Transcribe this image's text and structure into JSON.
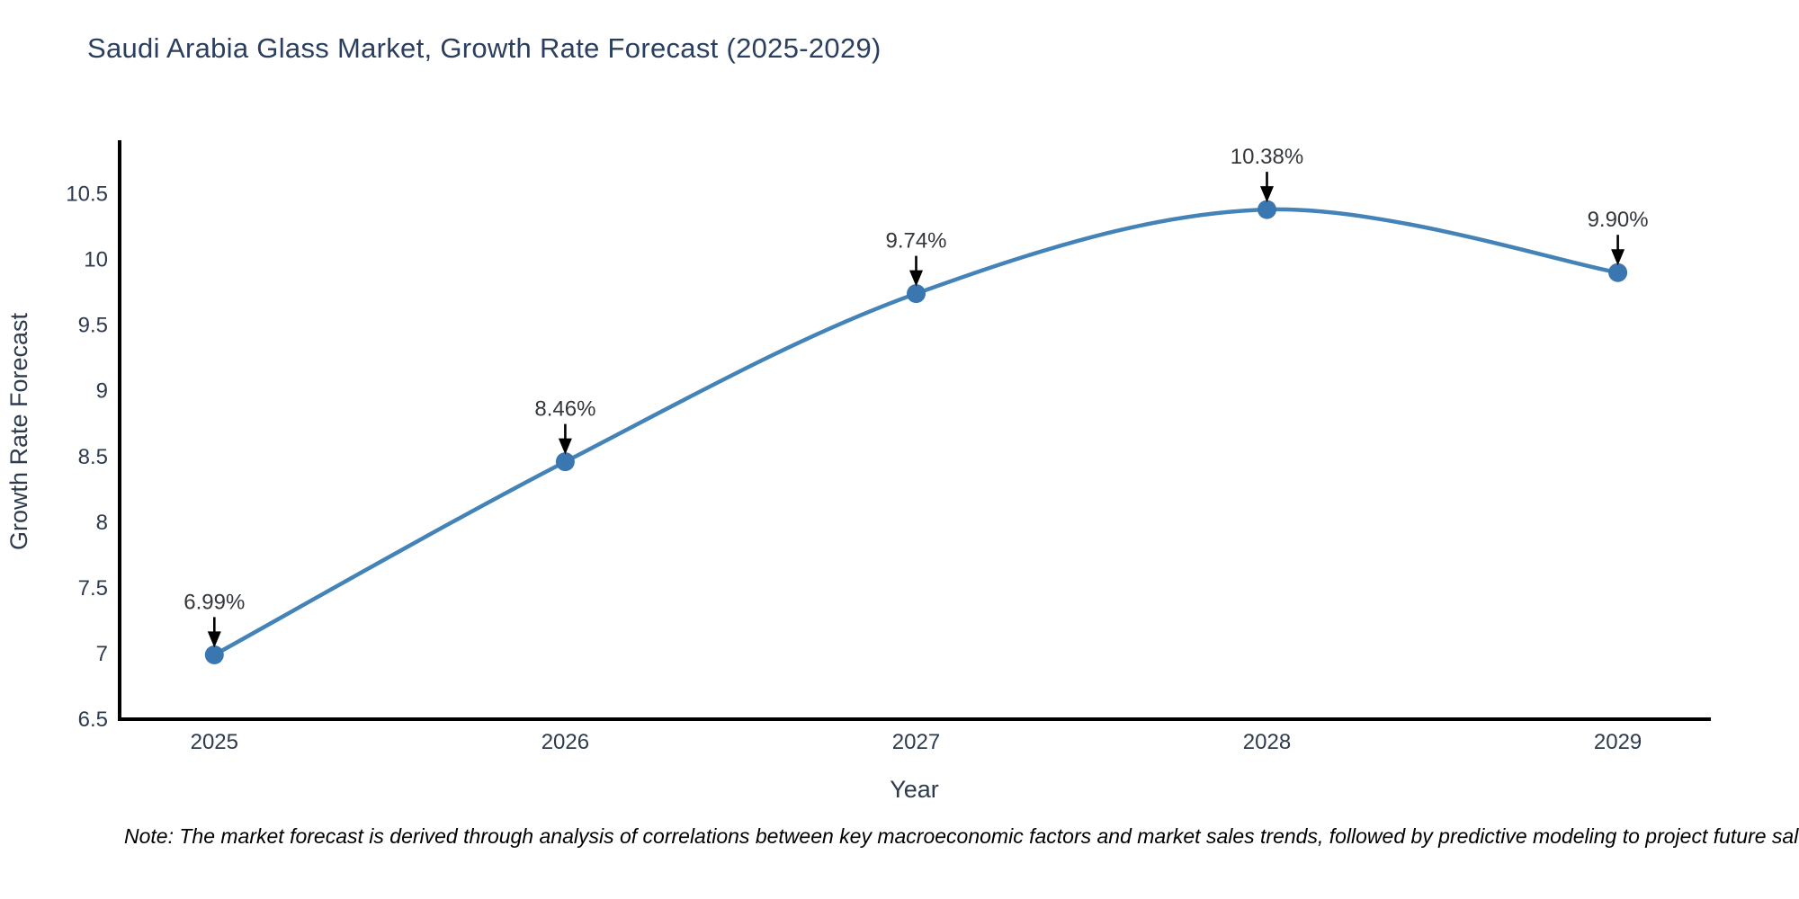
{
  "chart_data": {
    "type": "line",
    "title": "Saudi Arabia Glass Market, Growth Rate Forecast (2025-2029)",
    "xlabel": "Year",
    "ylabel": "Growth Rate Forecast",
    "x": [
      2025,
      2026,
      2027,
      2028,
      2029
    ],
    "series": [
      {
        "name": "Growth Rate Forecast",
        "values": [
          6.99,
          8.46,
          9.74,
          10.38,
          9.9
        ]
      }
    ],
    "point_labels": [
      "6.99%",
      "8.46%",
      "9.74%",
      "10.38%",
      "9.90%"
    ],
    "xticks": [
      2025,
      2026,
      2027,
      2028,
      2029
    ],
    "xtick_labels": [
      "2025",
      "2026",
      "2027",
      "2028",
      "2029"
    ],
    "yticks": [
      6.5,
      7,
      7.5,
      8,
      8.5,
      9,
      9.5,
      10,
      10.5
    ],
    "ytick_labels": [
      "6.5",
      "7",
      "7.5",
      "8",
      "8.5",
      "9",
      "9.5",
      "10",
      "10.5"
    ],
    "xlim": [
      2024.73,
      2029.26
    ],
    "ylim": [
      6.5,
      10.88
    ],
    "grid": false,
    "legend_position": "none",
    "line_shape": "spline",
    "colors": {
      "line": "#4383b7",
      "marker": "#3a76b0",
      "axis_line": "#000000",
      "title_text": "#2a3f5f",
      "axis_text": "#2e3b4e",
      "annotation_text": "#33373c",
      "arrow": "#000000",
      "note_text": "#000000",
      "background": "#ffffff"
    }
  },
  "note": "Note: The market forecast is derived through analysis of correlations between key macroeconomic factors and market sales trends, followed by predictive modeling to project future sal"
}
